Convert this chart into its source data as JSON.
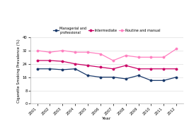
{
  "years": [
    2001,
    2002,
    2003,
    2004,
    2005,
    2006,
    2007,
    2008,
    2009,
    2010,
    2011,
    2012
  ],
  "managerial": [
    21,
    21,
    20.5,
    21,
    17,
    16,
    16,
    15,
    17,
    14,
    14,
    16
  ],
  "intermediate": [
    26,
    26,
    25.5,
    24,
    23,
    22,
    21,
    23,
    21,
    21,
    21,
    21
  ],
  "routine": [
    32,
    31,
    32,
    31,
    31,
    30,
    26,
    29,
    28,
    28,
    28,
    33
  ],
  "managerial_color": "#1a3a6b",
  "intermediate_color": "#cc0066",
  "routine_color": "#ff80c0",
  "legend_labels": [
    "Managerial and\nprofessional",
    "Intermediate",
    "Routine and manual"
  ],
  "ylabel": "Cigarette Smoking Prevalence (%)",
  "xlabel": "Year",
  "ylim": [
    0,
    40
  ],
  "yticks": [
    0,
    8,
    16,
    24,
    32,
    40
  ],
  "background_color": "#ffffff",
  "grid_color": "#e0e0e0"
}
